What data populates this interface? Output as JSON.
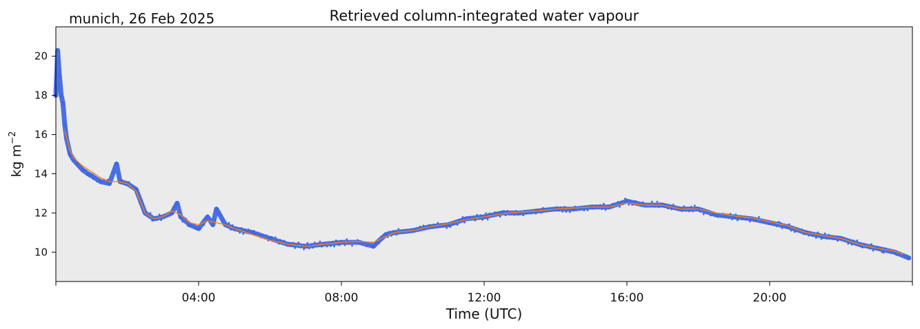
{
  "chart_data": {
    "type": "line",
    "title": "Retrieved column-integrated water vapour",
    "subtitle": "munich, 26 Feb 2025",
    "xlabel": "Time (UTC)",
    "ylabel": "kg m",
    "ylabel_superscript": "−2",
    "xlim": [
      0,
      24
    ],
    "ylim": [
      8.5,
      21.5
    ],
    "x_ticks": [
      {
        "value": 4,
        "label": "04:00"
      },
      {
        "value": 8,
        "label": "08:00"
      },
      {
        "value": 12,
        "label": "12:00"
      },
      {
        "value": 16,
        "label": "16:00"
      },
      {
        "value": 20,
        "label": "20:00"
      }
    ],
    "y_ticks": [
      {
        "value": 10,
        "label": "10"
      },
      {
        "value": 12,
        "label": "12"
      },
      {
        "value": 14,
        "label": "14"
      },
      {
        "value": 16,
        "label": "16"
      },
      {
        "value": 18,
        "label": "18"
      },
      {
        "value": 20,
        "label": "20"
      }
    ],
    "grid": false,
    "colors": {
      "background": "#ebebeb",
      "raw": "#4169e1",
      "smoothed": "#ff7f0e"
    },
    "series": [
      {
        "style": "scatter",
        "x": [
          0.0,
          0.05,
          0.1,
          0.15,
          0.2,
          0.25,
          0.3,
          0.4,
          0.5,
          0.6,
          0.75,
          0.9,
          1.0,
          1.25,
          1.5,
          1.7,
          1.8,
          2.0,
          2.25,
          2.5,
          2.75,
          3.0,
          3.25,
          3.4,
          3.5,
          3.75,
          4.0,
          4.25,
          4.4,
          4.5,
          4.75,
          5.0,
          5.5,
          6.0,
          6.5,
          7.0,
          7.5,
          8.0,
          8.5,
          8.9,
          9.0,
          9.25,
          9.5,
          10.0,
          10.5,
          11.0,
          11.5,
          12.0,
          12.5,
          13.0,
          13.5,
          14.0,
          14.5,
          15.0,
          15.5,
          16.0,
          16.5,
          17.0,
          17.5,
          18.0,
          18.5,
          19.0,
          19.5,
          20.0,
          20.5,
          21.0,
          21.5,
          22.0,
          22.5,
          23.0,
          23.5,
          23.9
        ],
        "values": [
          18.0,
          20.3,
          19.0,
          18.0,
          17.6,
          16.5,
          15.8,
          15.0,
          14.7,
          14.5,
          14.2,
          14.0,
          13.9,
          13.6,
          13.5,
          14.5,
          13.6,
          13.5,
          13.2,
          12.0,
          11.7,
          11.8,
          12.0,
          12.5,
          11.8,
          11.4,
          11.2,
          11.8,
          11.4,
          12.2,
          11.4,
          11.2,
          11.0,
          10.7,
          10.4,
          10.3,
          10.4,
          10.5,
          10.5,
          10.3,
          10.5,
          10.9,
          11.0,
          11.1,
          11.3,
          11.4,
          11.7,
          11.8,
          12.0,
          12.0,
          12.1,
          12.2,
          12.2,
          12.3,
          12.3,
          12.6,
          12.4,
          12.4,
          12.2,
          12.2,
          11.9,
          11.8,
          11.7,
          11.5,
          11.3,
          11.0,
          10.8,
          10.7,
          10.4,
          10.2,
          10.0,
          9.7
        ]
      },
      {
        "style": "line",
        "x": [
          0.25,
          0.4,
          0.5,
          0.75,
          1.0,
          1.25,
          1.5,
          1.75,
          2.0,
          2.25,
          2.5,
          2.75,
          3.0,
          3.25,
          3.5,
          3.75,
          4.0,
          4.25,
          4.5,
          4.75,
          5.0,
          5.5,
          6.0,
          6.5,
          7.0,
          7.5,
          8.0,
          8.5,
          8.9,
          9.25,
          9.5,
          10.0,
          10.5,
          11.0,
          11.5,
          12.0,
          12.5,
          13.0,
          13.5,
          14.0,
          14.5,
          15.0,
          15.5,
          16.0,
          16.5,
          17.0,
          17.5,
          18.0,
          18.5,
          19.0,
          19.5,
          20.0,
          20.5,
          21.0,
          21.5,
          22.0,
          22.5,
          23.0,
          23.5,
          23.75
        ],
        "values": [
          16.2,
          15.2,
          14.8,
          14.4,
          14.1,
          13.8,
          13.6,
          13.6,
          13.5,
          13.1,
          12.0,
          11.7,
          11.8,
          12.1,
          11.9,
          11.5,
          11.4,
          11.6,
          11.5,
          11.4,
          11.2,
          10.9,
          10.6,
          10.4,
          10.3,
          10.4,
          10.5,
          10.55,
          10.5,
          10.8,
          11.0,
          11.1,
          11.3,
          11.45,
          11.65,
          11.8,
          11.95,
          12.05,
          12.1,
          12.2,
          12.25,
          12.3,
          12.3,
          12.5,
          12.4,
          12.4,
          12.2,
          12.2,
          12.0,
          11.85,
          11.75,
          11.55,
          11.35,
          11.0,
          10.85,
          10.7,
          10.4,
          10.2,
          10.05,
          9.9
        ]
      }
    ]
  }
}
